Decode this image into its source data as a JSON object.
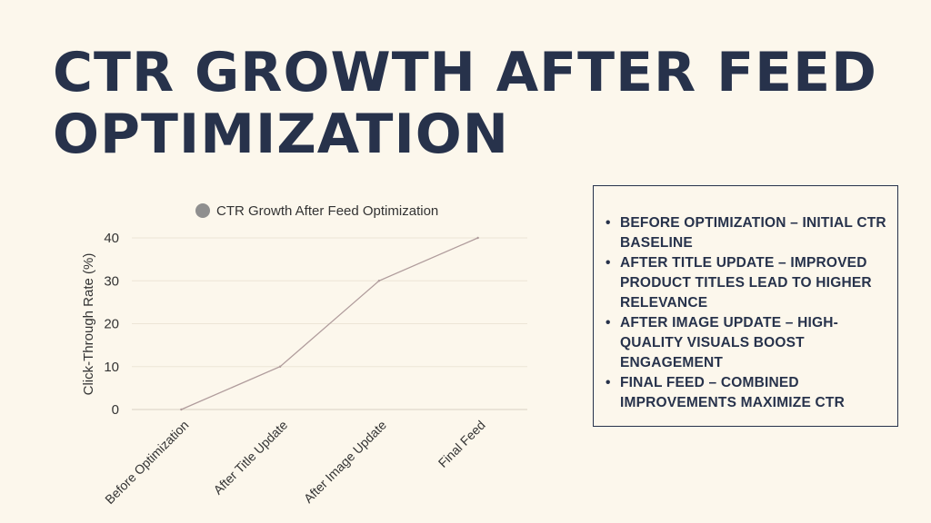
{
  "slide": {
    "title": "CTR GROWTH AFTER FEED OPTIMIZATION"
  },
  "chart_data": {
    "type": "line",
    "legend": "CTR Growth After Feed Optimization",
    "categories": [
      "Before Optimization",
      "After Title Update",
      "After Image Update",
      "Final Feed"
    ],
    "series": [
      {
        "name": "CTR Growth After Feed Optimization",
        "values": [
          0,
          10,
          30,
          40
        ]
      }
    ],
    "xlabel": "",
    "ylabel": "Click-Through Rate (%)",
    "ylim": [
      0,
      40
    ],
    "yticks": [
      0,
      10,
      20,
      30,
      40
    ],
    "grid": true,
    "legend_position": "top",
    "line_color": "#b09c9c",
    "legend_marker_color": "#8f8f8f"
  },
  "notes": {
    "items": [
      "BEFORE OPTIMIZATION – INITIAL CTR BASELINE",
      "AFTER TITLE UPDATE – IMPROVED PRODUCT TITLES LEAD TO HIGHER RELEVANCE",
      "AFTER IMAGE UPDATE – HIGH-QUALITY VISUALS BOOST ENGAGEMENT",
      "FINAL FEED – COMBINED IMPROVEMENTS MAXIMIZE CTR"
    ],
    "bullet": "•"
  }
}
